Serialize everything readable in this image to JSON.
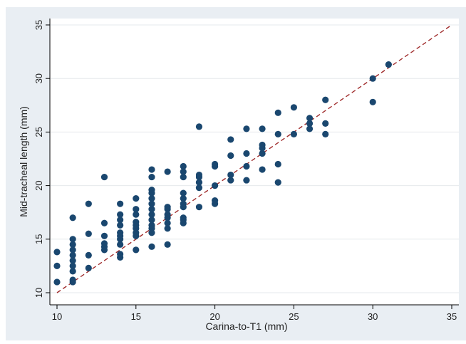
{
  "colors": {
    "page_background": "#ffffff",
    "chart_background": "#e9eef3",
    "plot_background": "#ffffff",
    "gridline": "#e6e9ec",
    "axis": "#000000",
    "marker": "#1a476f",
    "reference_line": "#a02c2c"
  },
  "chart_data": {
    "type": "scatter",
    "title": "",
    "xlabel": "Carina-to-T1 (mm)",
    "ylabel": "Mid-tracheal length (mm)",
    "xlim": [
      10,
      35
    ],
    "ylim": [
      10,
      35
    ],
    "xticks": [
      10,
      15,
      20,
      25,
      30,
      35
    ],
    "yticks": [
      10,
      15,
      20,
      25,
      30,
      35
    ],
    "grid": true,
    "legend": "none",
    "reference_line": {
      "style": "dashed",
      "from": [
        10,
        10
      ],
      "to": [
        35,
        35
      ]
    },
    "points": [
      [
        10,
        11.0
      ],
      [
        10,
        12.5
      ],
      [
        10,
        13.8
      ],
      [
        11,
        11.0
      ],
      [
        11,
        11.2
      ],
      [
        11,
        12.0
      ],
      [
        11,
        12.5
      ],
      [
        11,
        13.0
      ],
      [
        11,
        13.5
      ],
      [
        11,
        14.0
      ],
      [
        11,
        14.5
      ],
      [
        11,
        15.0
      ],
      [
        11,
        17.0
      ],
      [
        12,
        12.3
      ],
      [
        12,
        13.5
      ],
      [
        12,
        15.5
      ],
      [
        12,
        18.3
      ],
      [
        13,
        14.0
      ],
      [
        13,
        14.3
      ],
      [
        13,
        14.6
      ],
      [
        13,
        15.3
      ],
      [
        13,
        16.5
      ],
      [
        13,
        20.8
      ],
      [
        14,
        13.3
      ],
      [
        14,
        13.6
      ],
      [
        14,
        14.5
      ],
      [
        14,
        15.0
      ],
      [
        14,
        15.3
      ],
      [
        14,
        15.6
      ],
      [
        14,
        16.3
      ],
      [
        14,
        16.8
      ],
      [
        14,
        17.3
      ],
      [
        14,
        18.3
      ],
      [
        15,
        14.0
      ],
      [
        15,
        15.3
      ],
      [
        15,
        15.6
      ],
      [
        15,
        16.0
      ],
      [
        15,
        16.3
      ],
      [
        15,
        16.6
      ],
      [
        15,
        17.3
      ],
      [
        15,
        17.8
      ],
      [
        15,
        18.8
      ],
      [
        16,
        14.3
      ],
      [
        16,
        15.6
      ],
      [
        16,
        16.0
      ],
      [
        16,
        16.3
      ],
      [
        16,
        16.8
      ],
      [
        16,
        17.3
      ],
      [
        16,
        17.8
      ],
      [
        16,
        18.3
      ],
      [
        16,
        18.8
      ],
      [
        16,
        19.3
      ],
      [
        16,
        19.6
      ],
      [
        16,
        20.8
      ],
      [
        16,
        21.5
      ],
      [
        17,
        14.5
      ],
      [
        17,
        16.0
      ],
      [
        17,
        16.5
      ],
      [
        17,
        17.0
      ],
      [
        17,
        17.3
      ],
      [
        17,
        17.8
      ],
      [
        17,
        18.0
      ],
      [
        17,
        21.3
      ],
      [
        18,
        16.5
      ],
      [
        18,
        16.8
      ],
      [
        18,
        17.0
      ],
      [
        18,
        18.0
      ],
      [
        18,
        18.3
      ],
      [
        18,
        18.8
      ],
      [
        18,
        19.3
      ],
      [
        18,
        20.8
      ],
      [
        18,
        21.3
      ],
      [
        18,
        21.8
      ],
      [
        19,
        18.0
      ],
      [
        19,
        19.8
      ],
      [
        19,
        20.3
      ],
      [
        19,
        20.8
      ],
      [
        19,
        21.0
      ],
      [
        19,
        25.5
      ],
      [
        20,
        18.3
      ],
      [
        20,
        18.6
      ],
      [
        20,
        20.0
      ],
      [
        20,
        21.8
      ],
      [
        20,
        22.0
      ],
      [
        21,
        20.5
      ],
      [
        21,
        21.0
      ],
      [
        21,
        22.8
      ],
      [
        21,
        24.3
      ],
      [
        22,
        20.5
      ],
      [
        22,
        21.8
      ],
      [
        22,
        23.0
      ],
      [
        22,
        25.3
      ],
      [
        23,
        21.5
      ],
      [
        23,
        23.0
      ],
      [
        23,
        23.5
      ],
      [
        23,
        23.8
      ],
      [
        23,
        25.3
      ],
      [
        24,
        20.3
      ],
      [
        24,
        22.0
      ],
      [
        24,
        24.8
      ],
      [
        24,
        26.8
      ],
      [
        25,
        24.8
      ],
      [
        25,
        27.3
      ],
      [
        26,
        25.3
      ],
      [
        26,
        25.8
      ],
      [
        26,
        26.3
      ],
      [
        27,
        24.8
      ],
      [
        27,
        25.8
      ],
      [
        27,
        28.0
      ],
      [
        30,
        27.8
      ],
      [
        30,
        30.0
      ],
      [
        31,
        31.3
      ]
    ]
  }
}
